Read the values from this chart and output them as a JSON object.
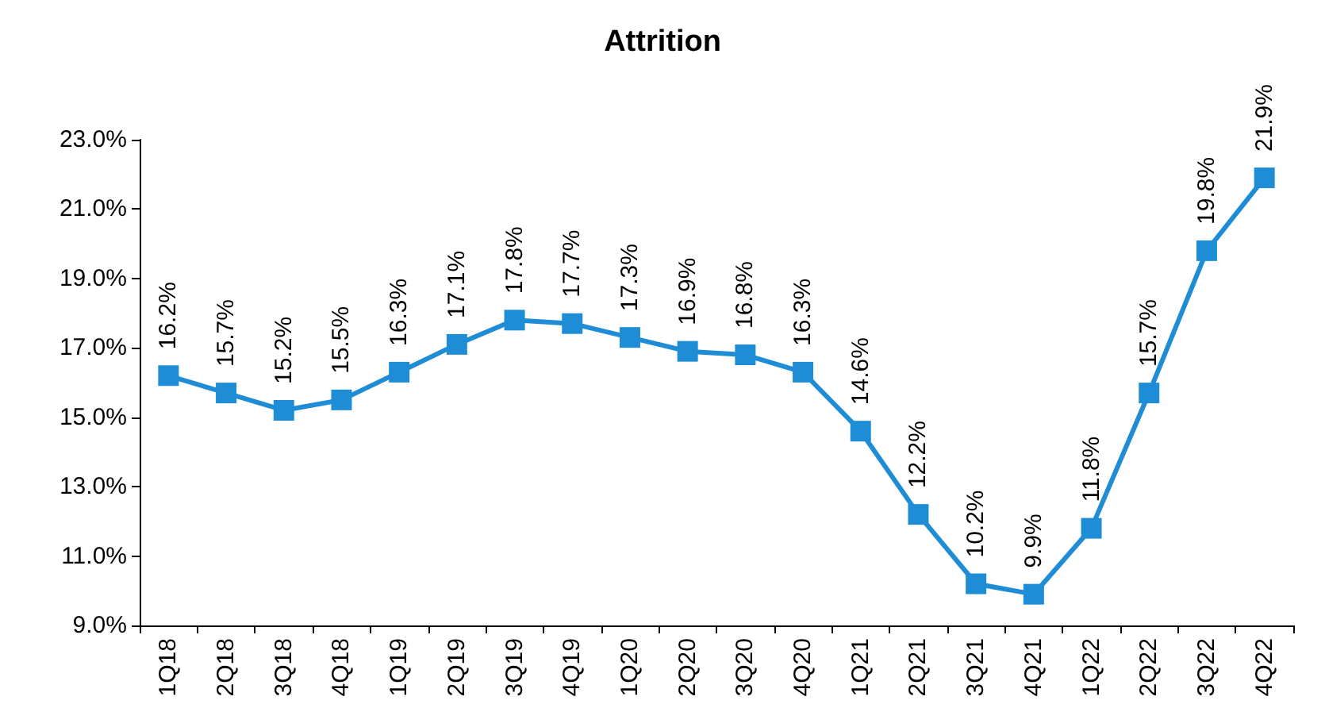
{
  "chart_data": {
    "type": "line",
    "title": "Attrition",
    "categories": [
      "1Q18",
      "2Q18",
      "3Q18",
      "4Q18",
      "1Q19",
      "2Q19",
      "3Q19",
      "4Q19",
      "1Q20",
      "2Q20",
      "3Q20",
      "4Q20",
      "1Q21",
      "2Q21",
      "3Q21",
      "4Q21",
      "1Q22",
      "2Q22",
      "3Q22",
      "4Q22"
    ],
    "series": [
      {
        "color": "#1f8dd6",
        "values": [
          16.2,
          15.7,
          15.2,
          15.5,
          16.3,
          17.1,
          17.8,
          17.7,
          17.3,
          16.9,
          16.8,
          16.3,
          14.6,
          12.2,
          10.2,
          9.9,
          11.8,
          15.7,
          19.8,
          21.9
        ],
        "value_labels": [
          "16.2%",
          "15.7%",
          "15.2%",
          "15.5%",
          "16.3%",
          "17.1%",
          "17.8%",
          "17.7%",
          "17.3%",
          "16.9%",
          "16.8%",
          "16.3%",
          "14.6%",
          "12.2%",
          "10.2%",
          "9.9%",
          "11.8%",
          "15.7%",
          "19.8%",
          "21.9%"
        ]
      }
    ],
    "ylim": [
      9,
      23
    ],
    "yticks": [
      {
        "value": 9,
        "label": "9.0%"
      },
      {
        "value": 11,
        "label": "11.0%"
      },
      {
        "value": 13,
        "label": "13.0%"
      },
      {
        "value": 15,
        "label": "15.0%"
      },
      {
        "value": 17,
        "label": "17.0%"
      },
      {
        "value": 19,
        "label": "19.0%"
      },
      {
        "value": 21,
        "label": "21.0%"
      },
      {
        "value": 23,
        "label": "23.0%"
      }
    ],
    "grid": false,
    "marker": "square",
    "line_style": "solid"
  }
}
